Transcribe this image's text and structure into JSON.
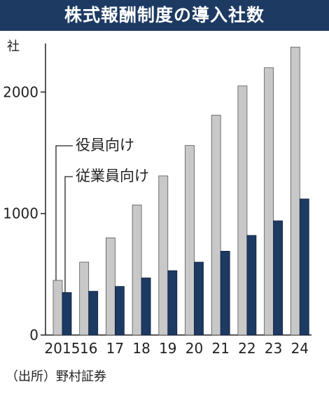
{
  "title": "株式報酬制度の導入社数",
  "source": "（出所）野村証券",
  "colors": {
    "header_bg": "#1d3a63",
    "officer_bar": "#c8c8c8",
    "employee_bar": "#1d3a63"
  },
  "chart_data": {
    "type": "bar",
    "ylabel": "社",
    "ylim": [
      0,
      2400
    ],
    "yticks": [
      0,
      1000,
      2000
    ],
    "yticklabels": [
      "0",
      "1000",
      "2000"
    ],
    "categories": [
      "2015",
      "16",
      "17",
      "18",
      "19",
      "20",
      "21",
      "22",
      "23",
      "24"
    ],
    "series": [
      {
        "name": "役員向け",
        "values": [
          450,
          600,
          800,
          1070,
          1310,
          1560,
          1810,
          2050,
          2200,
          2370
        ]
      },
      {
        "name": "従業員向け",
        "values": [
          350,
          360,
          400,
          470,
          530,
          600,
          690,
          820,
          940,
          1120
        ]
      }
    ],
    "legend_placement": "top-left"
  }
}
